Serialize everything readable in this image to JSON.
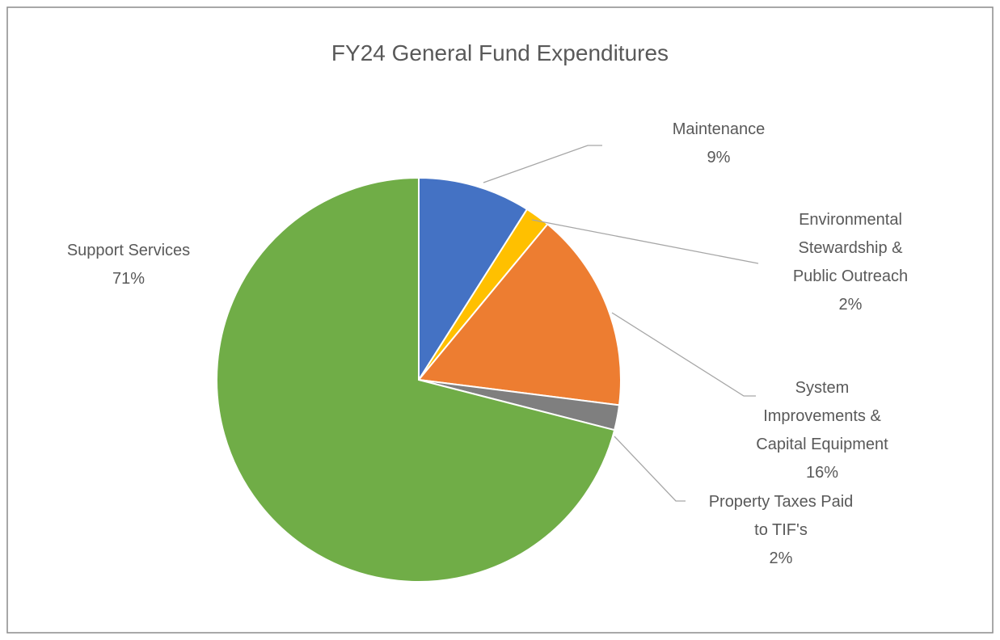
{
  "chart_data": {
    "type": "pie",
    "title": "FY24 General Fund Expenditures",
    "categories": [
      "Maintenance",
      "Environmental Stewardship & Public Outreach",
      "System Improvements & Capital Equipment",
      "Property Taxes Paid to TIF's",
      "Support Services"
    ],
    "values": [
      9,
      2,
      16,
      2,
      71
    ],
    "value_labels": [
      "9%",
      "2%",
      "16%",
      "2%",
      "71%"
    ],
    "colors": [
      "#4472c4",
      "#ffc000",
      "#ed7d31",
      "#7f7f7f",
      "#70ad47"
    ]
  }
}
